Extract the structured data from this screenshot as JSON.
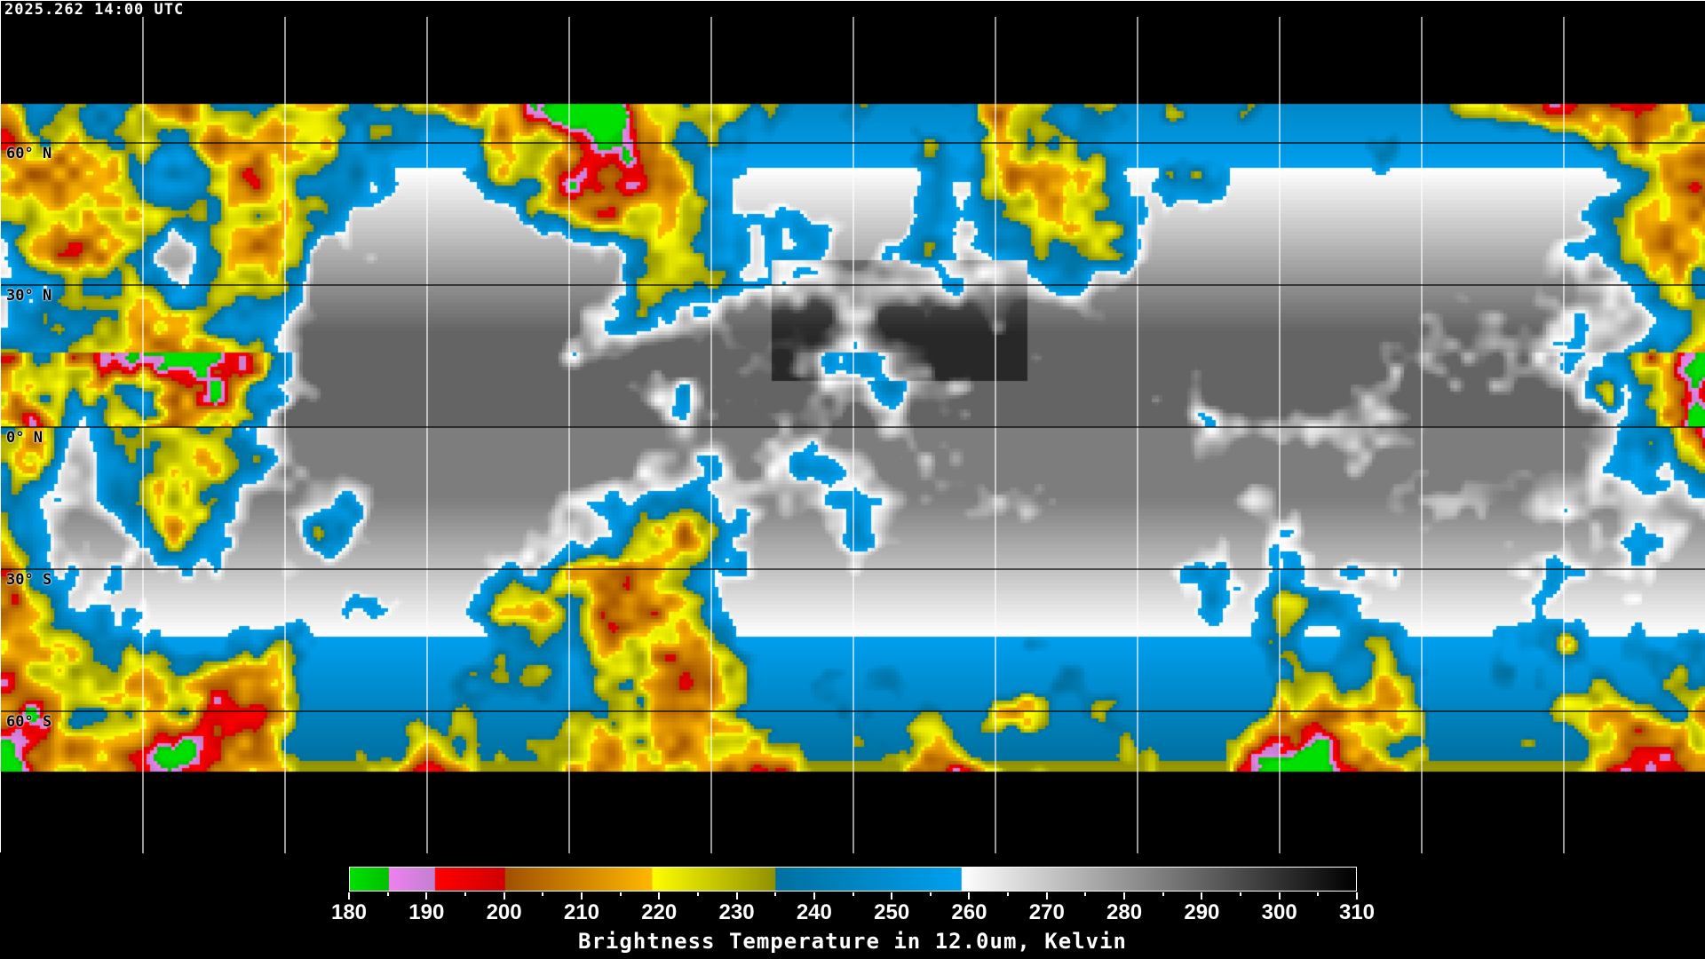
{
  "header": {
    "timestamp": "2025.262 14:00 UTC"
  },
  "map": {
    "projection": "equirectangular",
    "gridline_spacing_degrees": 30,
    "lat_labels": [
      "60° N",
      "30° N",
      "0° N",
      "30° S",
      "60° S"
    ],
    "gridline_color": "#ffffff",
    "coastline_colors": [
      "#000000",
      "#ffffff"
    ]
  },
  "colorbar": {
    "title": "Brightness Temperature in 12.0um, Kelvin",
    "min": 180,
    "max": 310,
    "tick_labels": [
      "180",
      "190",
      "200",
      "210",
      "220",
      "230",
      "240",
      "250",
      "260",
      "270",
      "280",
      "290",
      "300",
      "310"
    ],
    "segments": [
      {
        "from": 180,
        "to": 185,
        "start": "#00e000",
        "end": "#00c000"
      },
      {
        "from": 185,
        "to": 191,
        "start": "#f080f0",
        "end": "#c080d0"
      },
      {
        "from": 191,
        "to": 200,
        "start": "#ff0000",
        "end": "#d00000"
      },
      {
        "from": 200,
        "to": 219,
        "start": "#a05000",
        "end": "#ffb800"
      },
      {
        "from": 219,
        "to": 235,
        "start": "#ffff00",
        "end": "#909000"
      },
      {
        "from": 235,
        "to": 259,
        "start": "#0070a0",
        "end": "#00a0f0"
      },
      {
        "from": 259,
        "to": 310,
        "start": "#ffffff",
        "end": "#000000"
      }
    ]
  }
}
